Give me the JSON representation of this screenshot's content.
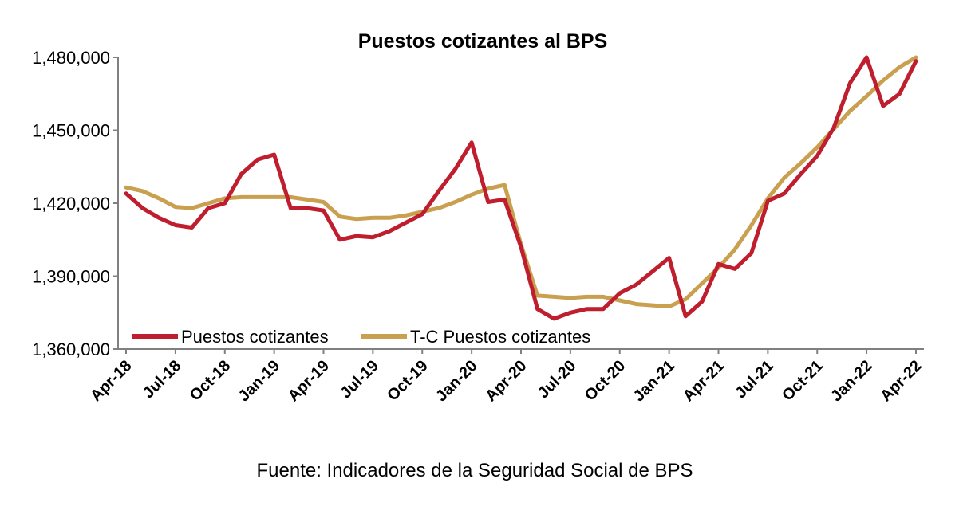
{
  "chart_data": {
    "type": "line",
    "title": "Puestos cotizantes al BPS",
    "xlabel": "",
    "ylabel": "",
    "ylim": [
      1360000,
      1480000
    ],
    "yticks": [
      "1,360,000",
      "1,390,000",
      "1,420,000",
      "1,450,000",
      "1,480,000"
    ],
    "ytick_values": [
      1360000,
      1390000,
      1420000,
      1450000,
      1480000
    ],
    "xtick_labels": [
      "Apr-18",
      "Jul-18",
      "Oct-18",
      "Jan-19",
      "Apr-19",
      "Jul-19",
      "Oct-19",
      "Jan-20",
      "Apr-20",
      "Jul-20",
      "Oct-20",
      "Jan-21",
      "Apr-21",
      "Jul-21",
      "Oct-21",
      "Jan-22",
      "Apr-22"
    ],
    "x": [
      "2018-04",
      "2018-05",
      "2018-06",
      "2018-07",
      "2018-08",
      "2018-09",
      "2018-10",
      "2018-11",
      "2018-12",
      "2019-01",
      "2019-02",
      "2019-03",
      "2019-04",
      "2019-05",
      "2019-06",
      "2019-07",
      "2019-08",
      "2019-09",
      "2019-10",
      "2019-11",
      "2019-12",
      "2020-01",
      "2020-02",
      "2020-03",
      "2020-04",
      "2020-05",
      "2020-06",
      "2020-07",
      "2020-08",
      "2020-09",
      "2020-10",
      "2020-11",
      "2020-12",
      "2021-01",
      "2021-02",
      "2021-03",
      "2021-04",
      "2021-05",
      "2021-06",
      "2021-07",
      "2021-08",
      "2021-09",
      "2021-10",
      "2021-11",
      "2021-12",
      "2022-01",
      "2022-02",
      "2022-03",
      "2022-04"
    ],
    "series": [
      {
        "name": "Puestos cotizantes",
        "color": "#BE1E2D",
        "values": [
          1424000,
          1418000,
          1414000,
          1411000,
          1410000,
          1418000,
          1420000,
          1432000,
          1438000,
          1440000,
          1418000,
          1418000,
          1417000,
          1405000,
          1406500,
          1406000,
          1408500,
          1412000,
          1415500,
          1425000,
          1434000,
          1445000,
          1420500,
          1421500,
          1402000,
          1376500,
          1372500,
          1375000,
          1376500,
          1376500,
          1383000,
          1386500,
          1392000,
          1397500,
          1373500,
          1379500,
          1395000,
          1393000,
          1399500,
          1421000,
          1424000,
          1432000,
          1439500,
          1451000,
          1469500,
          1480000,
          1460000,
          1465000,
          1478500
        ]
      },
      {
        "name": "T-C Puestos cotizantes",
        "color": "#C9A050",
        "values": [
          1426500,
          1425000,
          1422000,
          1418500,
          1418000,
          1420000,
          1422000,
          1422500,
          1422500,
          1422500,
          1422500,
          1421500,
          1420500,
          1414500,
          1413500,
          1414000,
          1414000,
          1415000,
          1416500,
          1418000,
          1420500,
          1423500,
          1426000,
          1427500,
          1403000,
          1382000,
          1381500,
          1381000,
          1381500,
          1381500,
          1380000,
          1378500,
          1378000,
          1377500,
          1380500,
          1387000,
          1393500,
          1401000,
          1411000,
          1422000,
          1430500,
          1436500,
          1443000,
          1450500,
          1458000,
          1464000,
          1470500,
          1476000,
          1480000
        ]
      }
    ],
    "legend": {
      "position": "bottom-left",
      "entries": [
        "Puestos cotizantes",
        "T-C Puestos cotizantes"
      ]
    },
    "grid": false
  },
  "source_text": "Fuente: Indicadores de la Seguridad Social de BPS"
}
